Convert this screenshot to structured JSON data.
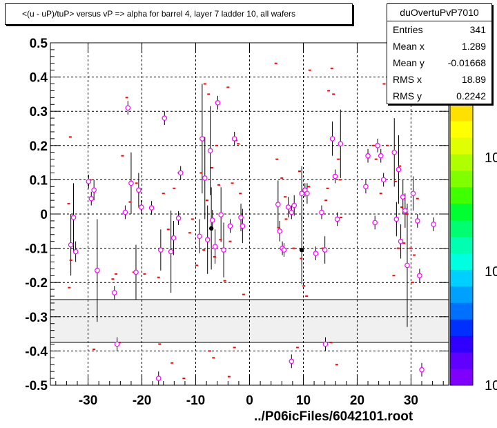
{
  "title": "<(u - uP)/tuP> versus   vP => alpha for barrel 4, layer 7 ladder 10, all wafers",
  "stats": {
    "name": "duOvertuPvP7010",
    "rows": [
      {
        "key": "Entries",
        "value": "341"
      },
      {
        "key": "Mean x",
        "value": "1.289"
      },
      {
        "key": "Mean y",
        "value": "-0.01668"
      },
      {
        "key": "RMS x",
        "value": "18.89"
      },
      {
        "key": "RMS y",
        "value": "0.2242"
      }
    ]
  },
  "footer": "../P06icFiles/6042101.root",
  "palette_labels": [
    "10",
    "10",
    "10"
  ],
  "chart_data": {
    "type": "scatter",
    "title": "<(u - uP)/tuP> versus   vP => alpha for barrel 4, layer 7 ladder 10, all wafers",
    "xlim": [
      -37,
      37
    ],
    "ylim": [
      -0.5,
      0.5
    ],
    "xticks": [
      -30,
      -20,
      -10,
      0,
      10,
      20,
      30
    ],
    "yticks": [
      -0.5,
      -0.4,
      -0.3,
      -0.2,
      -0.1,
      0,
      0.1,
      0.2,
      0.3,
      0.4,
      0.5
    ],
    "grid": true,
    "excluded_band": [
      -0.375,
      -0.25
    ],
    "colors": {
      "points": "#ff00ff",
      "red_marks": "#ff0000",
      "black_points": "#000000",
      "band_fill": "#f0f0f0",
      "palette": [
        "#7f00ff",
        "#6000ff",
        "#3000ff",
        "#0030ff",
        "#0070ff",
        "#00a0ff",
        "#00d0ff",
        "#00ffe0",
        "#00ffb0",
        "#00ff70",
        "#00ff30",
        "#40ff00",
        "#80ff00",
        "#b0ff00",
        "#e0ff00",
        "#ffff00",
        "#ffe000"
      ]
    },
    "points": [
      [
        -33.2,
        -0.09,
        0.09
      ],
      [
        -32.7,
        -0.01,
        0.1
      ],
      [
        -32.3,
        -0.11,
        0.03
      ],
      [
        -29.9,
        0.095,
        0.02
      ],
      [
        -29.4,
        0.045,
        0.02
      ],
      [
        -28.9,
        0.07,
        0.03
      ],
      [
        -28.3,
        -0.165,
        0.15
      ],
      [
        -25.1,
        -0.23,
        0.02
      ],
      [
        -23.1,
        0.005,
        0.02
      ],
      [
        -22.6,
        0.31,
        0.02
      ],
      [
        -22.0,
        0.09,
        0.09
      ],
      [
        -21.1,
        -0.17,
        0.08
      ],
      [
        -20.6,
        0.07,
        0.05
      ],
      [
        -20.1,
        0.02,
        0.02
      ],
      [
        -18.2,
        0.018,
        0.02
      ],
      [
        -16.5,
        -0.105,
        0.06
      ],
      [
        -15.8,
        0.28,
        0.02
      ],
      [
        -14.6,
        -0.11,
        0.12
      ],
      [
        -14.1,
        -0.07,
        0.05
      ],
      [
        -13.2,
        -0.012,
        0.02
      ],
      [
        -12.8,
        0.12,
        0.02
      ],
      [
        -9.3,
        -0.065,
        0.05
      ],
      [
        -8.8,
        0.22,
        0.16
      ],
      [
        -8.3,
        0.105,
        0.12
      ],
      [
        -7.8,
        -0.075,
        0.1
      ],
      [
        -7.3,
        0.185,
        0.13
      ],
      [
        -6.9,
        -0.018,
        0.03
      ],
      [
        -6.4,
        -0.095,
        0.05
      ],
      [
        -5.9,
        0.325,
        0.02
      ],
      [
        -5.3,
        -0.002,
        0.08
      ],
      [
        -4.8,
        -0.105,
        0.08
      ],
      [
        -3.6,
        -0.035,
        0.02
      ],
      [
        -2.8,
        0.22,
        0.02
      ],
      [
        -1.6,
        -0.01,
        0.04
      ],
      [
        -1.3,
        -0.035,
        0.05
      ],
      [
        5.3,
        0.028,
        0.07
      ],
      [
        5.6,
        -0.05,
        0.03
      ],
      [
        6.1,
        -0.1,
        0.02
      ],
      [
        6.4,
        -0.105,
        0.02
      ],
      [
        7.2,
        0.02,
        0.03
      ],
      [
        7.8,
        0.005,
        0.02
      ],
      [
        8.3,
        0.025,
        0.03
      ],
      [
        9.7,
        0.06,
        0.08
      ],
      [
        10.3,
        0.07,
        0.02
      ],
      [
        10.7,
        0.06,
        0.03
      ],
      [
        12.3,
        -0.115,
        0.02
      ],
      [
        13.4,
        0.005,
        0.02
      ],
      [
        14.0,
        -0.105,
        0.04
      ],
      [
        15.4,
        0.22,
        0.05
      ],
      [
        15.9,
        0.11,
        0.02
      ],
      [
        16.3,
        -0.015,
        0.02
      ],
      [
        16.9,
        0.205,
        0.1
      ],
      [
        21.6,
        0.08,
        0.02
      ],
      [
        22.0,
        0.17,
        0.02
      ],
      [
        23.3,
        -0.025,
        0.02
      ],
      [
        23.8,
        0.2,
        0.02
      ],
      [
        24.4,
        0.17,
        0.02
      ],
      [
        24.9,
        0.1,
        0.02
      ],
      [
        26.9,
        0.18,
        0.1
      ],
      [
        27.3,
        -0.015,
        0.05
      ],
      [
        27.7,
        0.13,
        0.1
      ],
      [
        28.1,
        -0.08,
        0.05
      ],
      [
        28.5,
        0.05,
        0.05
      ],
      [
        28.9,
        0.01,
        0.05
      ],
      [
        29.3,
        -0.15,
        0.18
      ],
      [
        30.4,
        0.06,
        0.05
      ],
      [
        31.2,
        -0.02,
        0.02
      ],
      [
        31.6,
        -0.18,
        0.02
      ],
      [
        34.2,
        -0.03,
        0.02
      ],
      [
        -24.6,
        -0.38,
        0.02
      ],
      [
        -16.9,
        -0.48,
        0.02
      ],
      [
        7.8,
        -0.43,
        0.02
      ],
      [
        14.1,
        -0.38,
        0.02
      ],
      [
        32.0,
        -0.455,
        0.02
      ]
    ],
    "black_points": [
      [
        -7.1,
        -0.042,
        0.12
      ],
      [
        9.7,
        -0.105,
        0.1
      ]
    ],
    "red_marks": [
      [
        -33.6,
        0.03
      ],
      [
        -33.3,
        0.225
      ],
      [
        -33.2,
        -0.135
      ],
      [
        -33.5,
        -0.215
      ],
      [
        -32.2,
        -0.11
      ],
      [
        -29.6,
        0.1
      ],
      [
        -28.9,
        -0.395
      ],
      [
        -25.4,
        -0.19
      ],
      [
        -24.8,
        -0.175
      ],
      [
        -24.2,
        -0.375
      ],
      [
        -23.6,
        0.17
      ],
      [
        -22.8,
        0.34
      ],
      [
        -22.2,
        0.035
      ],
      [
        -21.5,
        -0.17
      ],
      [
        -21.0,
        0.09
      ],
      [
        -20.4,
        0.02
      ],
      [
        -19.5,
        -0.175
      ],
      [
        -16.9,
        -0.185
      ],
      [
        -16.7,
        -0.38
      ],
      [
        -16.0,
        0.06
      ],
      [
        -15.1,
        -0.045
      ],
      [
        -14.4,
        -0.435
      ],
      [
        -14.0,
        0.075
      ],
      [
        -13.1,
        0.12
      ],
      [
        -12.2,
        -0.48
      ],
      [
        -11.1,
        -0.055
      ],
      [
        -10.6,
        -0.015
      ],
      [
        -9.8,
        -0.15
      ],
      [
        -9.0,
        0.12
      ],
      [
        -8.5,
        -0.105
      ],
      [
        -8.3,
        0.38
      ],
      [
        -7.9,
        0.04
      ],
      [
        -7.6,
        0.35
      ],
      [
        -7.4,
        -0.4
      ],
      [
        -7.0,
        0.135
      ],
      [
        -6.7,
        -0.42
      ],
      [
        -6.5,
        -0.125
      ],
      [
        -6.1,
        0.2
      ],
      [
        -5.7,
        0.085
      ],
      [
        -5.4,
        -0.075
      ],
      [
        -4.6,
        -0.195
      ],
      [
        -4.0,
        0.37
      ],
      [
        -3.8,
        -0.475
      ],
      [
        -3.6,
        -0.08
      ],
      [
        -3.2,
        0.09
      ],
      [
        -2.8,
        -0.39
      ],
      [
        -2.5,
        0.215
      ],
      [
        -2.1,
        0.205
      ],
      [
        -1.7,
        0.06
      ],
      [
        -1.1,
        -0.235
      ],
      [
        4.9,
        0.44
      ],
      [
        5.4,
        -0.04
      ],
      [
        5.1,
        0.16
      ],
      [
        6.0,
        0.105
      ],
      [
        6.6,
        0.05
      ],
      [
        6.8,
        -0.015
      ],
      [
        8.2,
        -0.1
      ],
      [
        8.9,
        -0.39
      ],
      [
        9.3,
        0.125
      ],
      [
        9.6,
        -0.13
      ],
      [
        10.1,
        -0.21
      ],
      [
        10.6,
        -0.24
      ],
      [
        11.0,
        0.08
      ],
      [
        11.2,
        0.42
      ],
      [
        13.6,
        -0.1
      ],
      [
        14.2,
        0.04
      ],
      [
        14.5,
        0.075
      ],
      [
        14.7,
        0.36
      ],
      [
        15.1,
        -0.375
      ],
      [
        15.3,
        0.425
      ],
      [
        15.6,
        0.35
      ],
      [
        16.2,
        -0.44
      ],
      [
        16.8,
        0.1
      ],
      [
        16.5,
        0.16
      ],
      [
        17.0,
        -0.01
      ],
      [
        23.0,
        0.2
      ],
      [
        23.5,
        0.16
      ],
      [
        24.4,
        0.06
      ],
      [
        25.0,
        0.38
      ],
      [
        25.6,
        0.2
      ],
      [
        26.8,
        -0.18
      ],
      [
        27.1,
        0.095
      ],
      [
        27.6,
        -0.1
      ],
      [
        27.9,
        0.14
      ],
      [
        28.3,
        0.02
      ],
      [
        28.7,
        -0.085
      ],
      [
        29.2,
        0.0
      ],
      [
        29.9,
        -0.1
      ],
      [
        30.3,
        -0.2
      ],
      [
        30.6,
        -0.12
      ],
      [
        31.2,
        0.045
      ],
      [
        31.4,
        -0.18
      ]
    ]
  }
}
